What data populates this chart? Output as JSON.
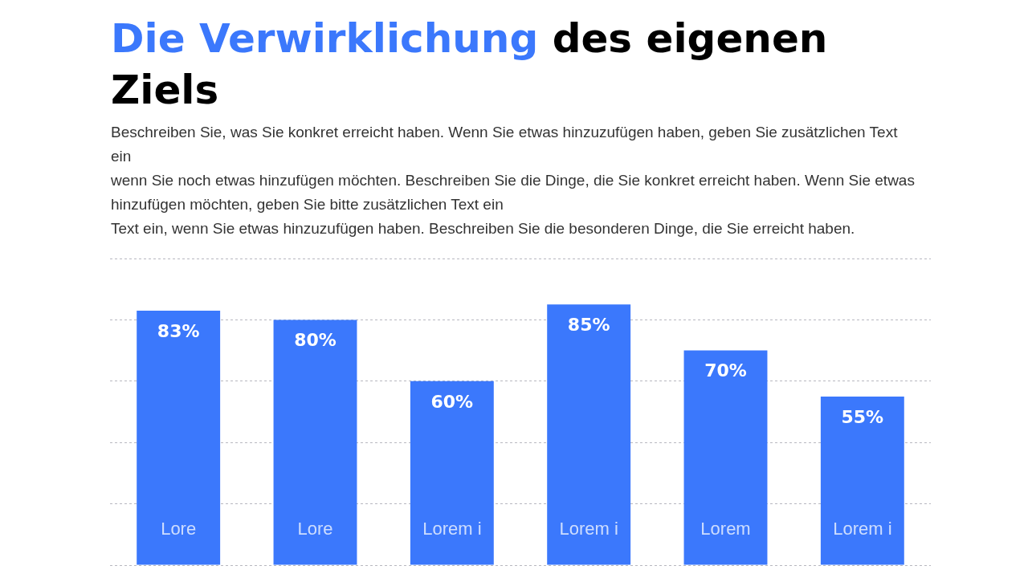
{
  "chart_data": {
    "type": "bar",
    "title": "Die Verwirklichung des eigenen Ziels",
    "subtitle": "Beschreiben Sie, was Sie konkret erreicht haben. Wenn Sie etwas hinzuzufügen haben, geben Sie zusätzlichen Text ein\nwenn Sie noch etwas hinzufügen möchten. Beschreiben Sie die Dinge, die Sie konkret erreicht haben. Wenn Sie etwas hinzufügen möchten, geben Sie bitte zusätzlichen Text ein\nText ein, wenn Sie etwas hinzuzufügen haben. Beschreiben Sie die besonderen Dinge, die Sie erreicht haben.",
    "categories": [
      "Lore",
      "Lore",
      "Lorem i",
      "Lorem i",
      "Lorem",
      "Lorem i"
    ],
    "values": [
      83,
      80,
      60,
      85,
      70,
      55
    ],
    "value_labels": [
      "83%",
      "80%",
      "60%",
      "85%",
      "70%",
      "55%"
    ],
    "color": "#3b78fc",
    "ylim": [
      0,
      100
    ],
    "yticks": [
      {
        "value": 0,
        "label": null
      },
      {
        "value": 20,
        "label": null
      },
      {
        "value": 40,
        "label": null
      },
      {
        "value": 60,
        "label": null
      },
      {
        "value": 80,
        "label": null
      },
      {
        "value": 100,
        "label": null
      }
    ],
    "grid": "y",
    "tick_labels": "x"
  }
}
